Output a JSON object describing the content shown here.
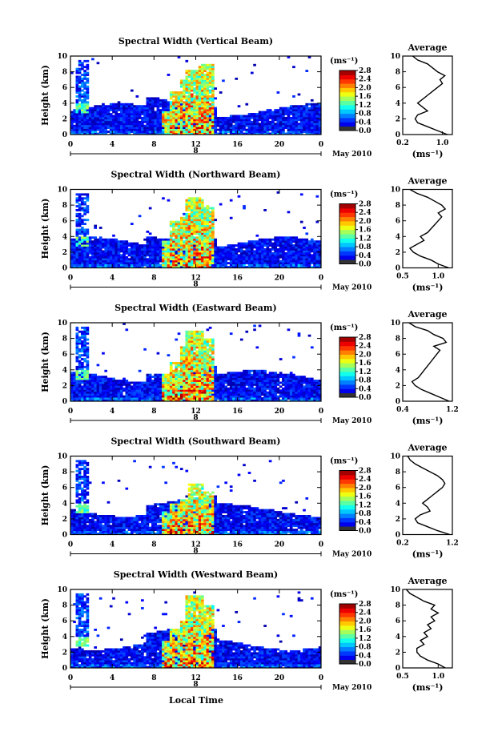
{
  "figure": {
    "x_axis_label": "Local Time",
    "date_label": "May 2010",
    "day_marker": "8",
    "colorbar_unit": "(ms⁻¹)"
  },
  "chart_data": [
    {
      "type": "heatmap",
      "title": "Spectral Width (Vertical Beam)",
      "xlabel": "Local Time",
      "ylabel": "Height (km)",
      "xlim": [
        0,
        24
      ],
      "ylim": [
        0,
        10
      ],
      "x_ticks": [
        "0",
        "4",
        "8",
        "12",
        "16",
        "20",
        "0"
      ],
      "y_ticks": [
        "0",
        "2",
        "4",
        "6",
        "8",
        "10"
      ],
      "colorbar": {
        "label": "(ms⁻¹)",
        "range": [
          0.0,
          2.8
        ],
        "ticks": [
          "0.0",
          "0.4",
          "0.8",
          "1.2",
          "1.6",
          "2.0",
          "2.4",
          "2.8"
        ]
      },
      "precip_cells": [
        [
          9.3,
          3.0,
          4
        ],
        [
          10.0,
          5.5,
          5
        ],
        [
          11.0,
          6.8,
          6
        ],
        [
          11.8,
          8.2,
          8
        ],
        [
          12.8,
          9.0,
          5
        ],
        [
          12.4,
          7.5,
          4
        ]
      ],
      "profile": {
        "title": "Average",
        "xlabel": "(ms⁻¹)",
        "xlim": [
          0.2,
          1.2
        ],
        "x_ticks": [
          "0.2",
          "1.0"
        ],
        "x": [
          1.1,
          0.9,
          0.7,
          0.5,
          0.45,
          0.5,
          0.7,
          0.6,
          0.5,
          0.6,
          0.7,
          0.8,
          0.9,
          1.0,
          0.95,
          1.05,
          0.9,
          0.8,
          0.7,
          0.5,
          0.4
        ],
        "heights": [
          0.0,
          0.5,
          1.0,
          1.5,
          2.0,
          2.5,
          3.0,
          3.5,
          4.0,
          4.5,
          5.0,
          5.5,
          6.0,
          6.5,
          7.0,
          7.5,
          8.0,
          8.5,
          9.0,
          9.5,
          10.0
        ]
      }
    },
    {
      "type": "heatmap",
      "title": "Spectral Width (Northward Beam)",
      "xlabel": "Local Time",
      "ylabel": "Height (km)",
      "xlim": [
        0,
        24
      ],
      "ylim": [
        0,
        10
      ],
      "x_ticks": [
        "0",
        "4",
        "8",
        "12",
        "16",
        "20",
        "0"
      ],
      "y_ticks": [
        "0",
        "2",
        "4",
        "6",
        "8",
        "10"
      ],
      "colorbar": {
        "label": "(ms⁻¹)",
        "range": [
          0.0,
          2.8
        ],
        "ticks": [
          "0.0",
          "0.4",
          "0.8",
          "1.2",
          "1.6",
          "2.0",
          "2.4",
          "2.8"
        ]
      },
      "precip_cells": [
        [
          9.3,
          3.5,
          4
        ],
        [
          10.0,
          5.8,
          5
        ],
        [
          11.0,
          6.5,
          6
        ],
        [
          11.8,
          8.8,
          8
        ],
        [
          12.8,
          8.0,
          6
        ],
        [
          12.4,
          7.0,
          4
        ]
      ],
      "profile": {
        "title": "Average",
        "xlabel": "(ms⁻¹)",
        "xlim": [
          0.5,
          1.2
        ],
        "x_ticks": [
          "0.5",
          "1.0"
        ],
        "x": [
          1.15,
          1.0,
          0.9,
          0.75,
          0.65,
          0.6,
          0.7,
          0.8,
          0.75,
          0.85,
          0.9,
          0.95,
          1.0,
          1.05,
          1.0,
          1.1,
          1.05,
          0.95,
          0.85,
          0.7,
          0.6
        ],
        "heights": [
          0.0,
          0.5,
          1.0,
          1.5,
          2.0,
          2.5,
          3.0,
          3.5,
          4.0,
          4.5,
          5.0,
          5.5,
          6.0,
          6.5,
          7.0,
          7.5,
          8.0,
          8.5,
          9.0,
          9.5,
          10.0
        ]
      }
    },
    {
      "type": "heatmap",
      "title": "Spectral Width (Eastward Beam)",
      "xlabel": "Local Time",
      "ylabel": "Height (km)",
      "xlim": [
        0,
        24
      ],
      "ylim": [
        0,
        10
      ],
      "x_ticks": [
        "0",
        "4",
        "8",
        "12",
        "16",
        "20",
        "0"
      ],
      "y_ticks": [
        "0",
        "2",
        "4",
        "6",
        "8",
        "10"
      ],
      "colorbar": {
        "label": "(ms⁻¹)",
        "range": [
          0.0,
          2.8
        ],
        "ticks": [
          "0.0",
          "0.4",
          "0.8",
          "1.2",
          "1.6",
          "2.0",
          "2.4",
          "2.8"
        ]
      },
      "precip_cells": [
        [
          9.3,
          3.5,
          4
        ],
        [
          10.0,
          5.0,
          5
        ],
        [
          11.0,
          6.8,
          6
        ],
        [
          11.8,
          8.8,
          8
        ],
        [
          12.8,
          7.8,
          5
        ],
        [
          12.4,
          6.5,
          4
        ]
      ],
      "profile": {
        "title": "Average",
        "xlabel": "(ms⁻¹)",
        "xlim": [
          0.4,
          1.2
        ],
        "x_ticks": [
          "0.4",
          "1.2"
        ],
        "x": [
          1.15,
          1.0,
          0.85,
          0.7,
          0.6,
          0.55,
          0.65,
          0.7,
          0.75,
          0.8,
          0.85,
          0.9,
          0.95,
          1.0,
          0.9,
          1.1,
          1.05,
          0.9,
          0.8,
          0.6,
          0.5
        ],
        "heights": [
          0.0,
          0.5,
          1.0,
          1.5,
          2.0,
          2.5,
          3.0,
          3.5,
          4.0,
          4.5,
          5.0,
          5.5,
          6.0,
          6.5,
          7.0,
          7.5,
          8.0,
          8.5,
          9.0,
          9.5,
          10.0
        ]
      }
    },
    {
      "type": "heatmap",
      "title": "Spectral Width (Southward Beam)",
      "xlabel": "Local Time",
      "ylabel": "Height (km)",
      "xlim": [
        0,
        24
      ],
      "ylim": [
        0,
        10
      ],
      "x_ticks": [
        "0",
        "4",
        "8",
        "12",
        "16",
        "20",
        "0"
      ],
      "y_ticks": [
        "0",
        "2",
        "4",
        "6",
        "8",
        "10"
      ],
      "colorbar": {
        "label": "(ms⁻¹)",
        "range": [
          0.0,
          2.8
        ],
        "ticks": [
          "0.0",
          "0.4",
          "0.8",
          "1.2",
          "1.6",
          "2.0",
          "2.4",
          "2.8"
        ]
      },
      "precip_cells": [
        [
          9.3,
          3.0,
          4
        ],
        [
          10.0,
          4.0,
          5
        ],
        [
          11.0,
          4.5,
          6
        ],
        [
          11.8,
          6.5,
          7
        ],
        [
          12.8,
          5.5,
          5
        ],
        [
          12.4,
          4.5,
          4
        ]
      ],
      "profile": {
        "title": "Average",
        "xlabel": "(ms⁻¹)",
        "xlim": [
          0.2,
          1.2
        ],
        "x_ticks": [
          "0.2",
          "1.2"
        ],
        "x": [
          1.15,
          0.9,
          0.7,
          0.5,
          0.45,
          0.55,
          0.75,
          0.7,
          0.6,
          0.7,
          0.8,
          0.9,
          1.0,
          1.05,
          1.0,
          0.9,
          0.75,
          0.6,
          0.45,
          0.35,
          0.3
        ],
        "heights": [
          0.0,
          0.5,
          1.0,
          1.5,
          2.0,
          2.5,
          3.0,
          3.5,
          4.0,
          4.5,
          5.0,
          5.5,
          6.0,
          6.5,
          7.0,
          7.5,
          8.0,
          8.5,
          9.0,
          9.5,
          10.0
        ]
      }
    },
    {
      "type": "heatmap",
      "title": "Spectral Width (Westward Beam)",
      "xlabel": "Local Time",
      "ylabel": "Height (km)",
      "xlim": [
        0,
        24
      ],
      "ylim": [
        0,
        10
      ],
      "x_ticks": [
        "0",
        "4",
        "8",
        "12",
        "16",
        "20",
        "0"
      ],
      "y_ticks": [
        "0",
        "2",
        "4",
        "6",
        "8",
        "10"
      ],
      "colorbar": {
        "label": "(ms⁻¹)",
        "range": [
          0.0,
          2.8
        ],
        "ticks": [
          "0.0",
          "0.4",
          "0.8",
          "1.2",
          "1.6",
          "2.0",
          "2.4",
          "2.8"
        ]
      },
      "precip_cells": [
        [
          9.3,
          3.5,
          4
        ],
        [
          10.0,
          5.0,
          5
        ],
        [
          11.0,
          5.8,
          6
        ],
        [
          11.8,
          9.2,
          8
        ],
        [
          12.8,
          8.0,
          6
        ],
        [
          12.4,
          6.5,
          4
        ]
      ],
      "profile": {
        "title": "Average",
        "xlabel": "(ms⁻¹)",
        "xlim": [
          0.5,
          1.2
        ],
        "x_ticks": [
          "0.5",
          "1.0"
        ],
        "x": [
          1.1,
          1.0,
          0.85,
          0.75,
          0.7,
          0.7,
          0.8,
          0.75,
          0.85,
          0.8,
          0.9,
          0.85,
          0.95,
          0.9,
          1.0,
          0.9,
          0.95,
          0.8,
          0.7,
          0.6,
          0.55
        ],
        "heights": [
          0.0,
          0.5,
          1.0,
          1.5,
          2.0,
          2.5,
          3.0,
          3.5,
          4.0,
          4.5,
          5.0,
          5.5,
          6.0,
          6.5,
          7.0,
          7.5,
          8.0,
          8.5,
          9.0,
          9.5,
          10.0
        ]
      }
    }
  ]
}
